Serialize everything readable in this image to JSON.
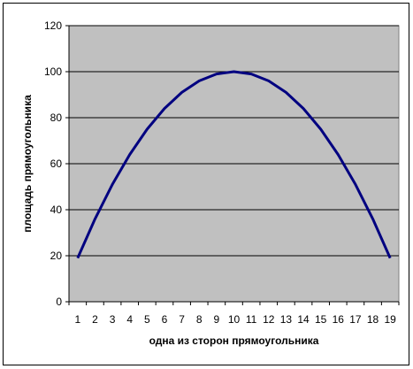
{
  "chart_data": {
    "type": "line",
    "title": "",
    "xlabel": "одна из сторон прямоугольника",
    "ylabel": "площадь прямоугольника",
    "categories": [
      "1",
      "2",
      "3",
      "4",
      "5",
      "6",
      "7",
      "8",
      "9",
      "10",
      "11",
      "12",
      "13",
      "14",
      "15",
      "16",
      "17",
      "18",
      "19"
    ],
    "series": [
      {
        "values": [
          19,
          36,
          51,
          64,
          75,
          84,
          91,
          96,
          99,
          100,
          99,
          96,
          91,
          84,
          75,
          64,
          51,
          36,
          19
        ]
      }
    ],
    "yticks": [
      "0",
      "20",
      "40",
      "60",
      "80",
      "100",
      "120"
    ],
    "ylim": [
      0,
      120
    ],
    "grid": true,
    "legend": "none",
    "colors": {
      "line": "#000080",
      "plot_background": "#c0c0c0",
      "gridline": "#000000"
    }
  }
}
